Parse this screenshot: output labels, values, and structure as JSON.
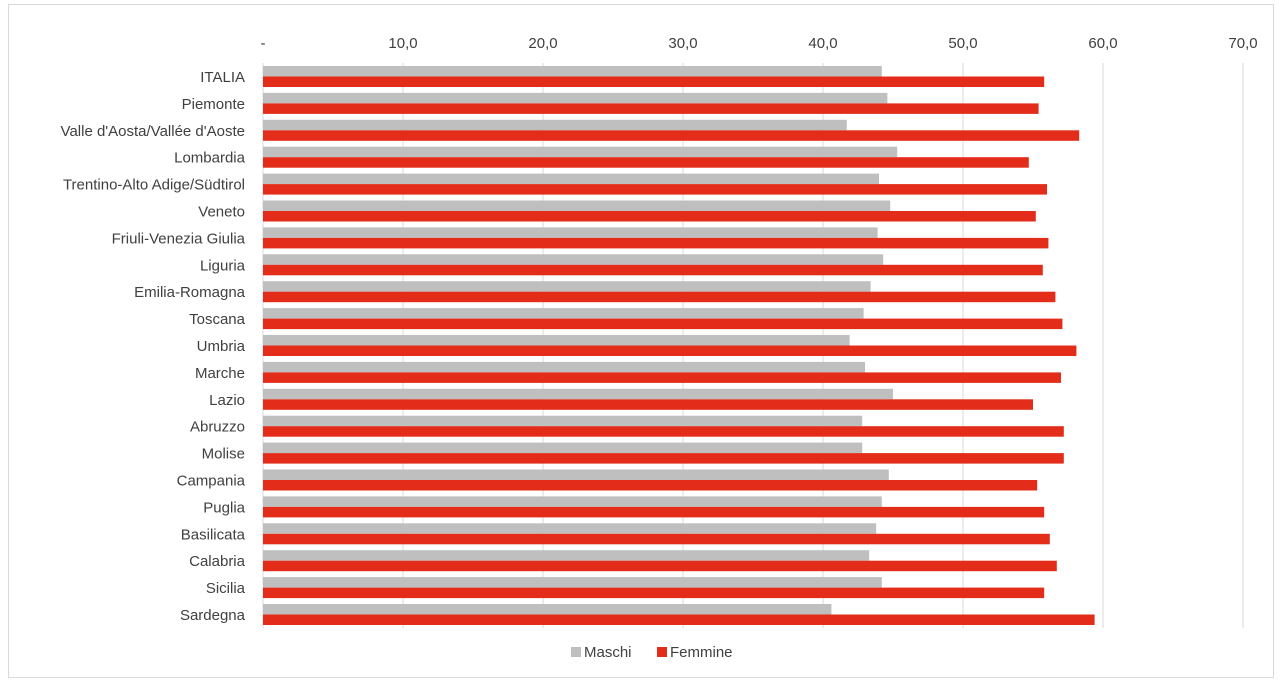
{
  "chart_data": {
    "type": "bar",
    "orientation": "horizontal",
    "categories": [
      "ITALIA",
      "Piemonte",
      "Valle d'Aosta/Vallée d'Aoste",
      "Lombardia",
      "Trentino-Alto Adige/Südtirol",
      "Veneto",
      "Friuli-Venezia Giulia",
      "Liguria",
      "Emilia-Romagna",
      "Toscana",
      "Umbria",
      "Marche",
      "Lazio",
      "Abruzzo",
      "Molise",
      "Campania",
      "Puglia",
      "Basilicata",
      "Calabria",
      "Sicilia",
      "Sardegna"
    ],
    "series": [
      {
        "name": "Maschi",
        "color": "#bfbfbf",
        "values": [
          44.2,
          44.6,
          41.7,
          45.3,
          44.0,
          44.8,
          43.9,
          44.3,
          43.4,
          42.9,
          41.9,
          43.0,
          45.0,
          42.8,
          42.8,
          44.7,
          44.2,
          43.8,
          43.3,
          44.2,
          40.6
        ]
      },
      {
        "name": "Femmine",
        "color": "#e32d1a",
        "values": [
          55.8,
          55.4,
          58.3,
          54.7,
          56.0,
          55.2,
          56.1,
          55.7,
          56.6,
          57.1,
          58.1,
          57.0,
          55.0,
          57.2,
          57.2,
          55.3,
          55.8,
          56.2,
          56.7,
          55.8,
          59.4
        ]
      }
    ],
    "xlim": [
      0,
      70
    ],
    "x_ticks": [
      "-",
      "10,0",
      "20,0",
      "30,0",
      "40,0",
      "50,0",
      "60,0",
      "70,0"
    ],
    "x_tick_values": [
      0,
      10,
      20,
      30,
      40,
      50,
      60,
      70
    ],
    "x_axis_position": "top",
    "grid": true,
    "legend_position": "bottom",
    "title": "",
    "xlabel": "",
    "ylabel": ""
  }
}
